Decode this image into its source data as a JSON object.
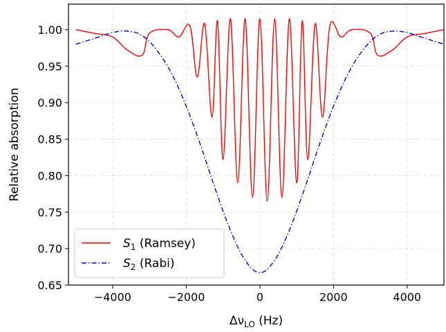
{
  "chart_data": {
    "type": "line",
    "xlabel_base": "Δν",
    "xlabel_sub": "LO",
    "xlabel_unit": " (Hz)",
    "ylabel": "Relative absorption",
    "xlim": [
      -5200,
      5000
    ],
    "ylim": [
      0.65,
      1.035
    ],
    "xticks": [
      -4000,
      -2000,
      0,
      2000,
      4000
    ],
    "xtick_labels": [
      "−4000",
      "−2000",
      "0",
      "2000",
      "4000"
    ],
    "yticks": [
      0.65,
      0.7,
      0.75,
      0.8,
      0.85,
      0.9,
      0.95,
      1.0
    ],
    "ytick_labels": [
      "0.65",
      "0.70",
      "0.75",
      "0.80",
      "0.85",
      "0.90",
      "0.95",
      "1.00"
    ],
    "grid": true,
    "legend_position": "bottom-left",
    "series": [
      {
        "key": "ramsey",
        "name_symbol": "S",
        "name_sub": "1",
        "name_rest": " (Ramsey)",
        "color": "#ff0000",
        "style": "solid",
        "x": [
          -5000,
          -4500,
          -4000,
          -3600,
          -3200,
          -3000,
          -2500,
          -2200,
          -1900,
          -1700,
          -1500,
          -1300,
          -1150,
          -1000,
          -800,
          -600,
          -400,
          -200,
          0,
          200,
          400,
          600,
          800,
          1000,
          1150,
          1300,
          1500,
          1700,
          1900,
          2200,
          2500,
          3000,
          3200,
          3600,
          4000,
          4500,
          5000
        ],
        "y": [
          1.0,
          0.995,
          0.99,
          0.972,
          0.965,
          0.995,
          1.0,
          0.99,
          1.005,
          0.935,
          1.008,
          0.88,
          1.012,
          0.822,
          1.015,
          0.79,
          1.015,
          0.77,
          1.015,
          0.765,
          1.015,
          0.77,
          1.015,
          0.79,
          1.012,
          0.822,
          1.008,
          0.88,
          1.005,
          0.99,
          1.0,
          0.995,
          0.965,
          0.972,
          0.99,
          0.995,
          1.0
        ]
      },
      {
        "key": "rabi",
        "name_symbol": "S",
        "name_sub": "2",
        "name_rest": " (Rabi)",
        "color": "#0000cc",
        "style": "dashdot",
        "x": [
          -5000,
          -4500,
          -4000,
          -3600,
          -3200,
          -2800,
          -2400,
          -2000,
          -1600,
          -1200,
          -800,
          -400,
          0,
          400,
          800,
          1200,
          1600,
          2000,
          2400,
          2800,
          3200,
          3600,
          4000,
          4500,
          5000
        ],
        "y": [
          0.98,
          0.988,
          0.996,
          0.998,
          0.992,
          0.972,
          0.94,
          0.895,
          0.84,
          0.78,
          0.725,
          0.684,
          0.667,
          0.684,
          0.725,
          0.78,
          0.84,
          0.895,
          0.94,
          0.972,
          0.992,
          0.998,
          0.996,
          0.988,
          0.98
        ]
      }
    ]
  }
}
